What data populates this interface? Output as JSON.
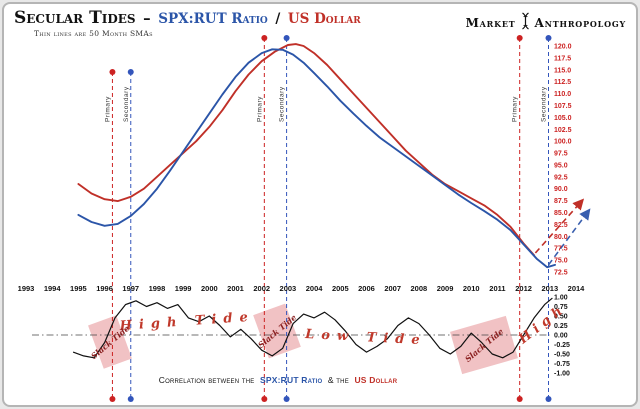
{
  "header": {
    "title_main": "Secular Tides",
    "title_sep": "–",
    "title_blue": "SPX:RUT Ratio",
    "title_slash": "/",
    "title_red": "US Dollar",
    "subtitle": "Thin lines are 50 Month SMAs",
    "logo_left": "Market",
    "logo_right": "Anthropology"
  },
  "footer": {
    "caption_prefix": "Correlation between the",
    "caption_blue": "SPX:RUT Ratio",
    "caption_mid": "& the",
    "caption_red": "US Dollar"
  },
  "colors": {
    "spx_rut_blue": "#2b55a8",
    "us_dollar_red": "#c03028",
    "axis_tick_red": "#cc2222",
    "correlation_black": "#111111",
    "slack_box_pink": "rgba(225,120,125,0.45)",
    "annotation_red": "#c0392b"
  },
  "chart_data": {
    "type": "line",
    "title": "Secular Tides – SPX:RUT Ratio / US Dollar",
    "subtitle": "Thin lines are 50 Month SMAs",
    "x_years": [
      1993,
      1994,
      1995,
      1996,
      1997,
      1998,
      1999,
      2000,
      2001,
      2002,
      2003,
      2004,
      2005,
      2006,
      2007,
      2008,
      2009,
      2010,
      2011,
      2012,
      2013,
      2014
    ],
    "y_axis": {
      "min": 72.5,
      "max": 120.0,
      "step": 2.5,
      "ticks": [
        "120.0",
        "117.5",
        "115.0",
        "112.5",
        "110.0",
        "107.5",
        "105.0",
        "102.5",
        "100.0",
        "97.5",
        "95.0",
        "92.5",
        "90.0",
        "87.5",
        "85.0",
        "82.5",
        "80.0",
        "77.5",
        "75.0",
        "72.5"
      ]
    },
    "series": [
      {
        "name": "US Dollar (50-month SMA)",
        "color": "#c03028",
        "x": [
          1995,
          1995.5,
          1996,
          1996.5,
          1997,
          1997.5,
          1998,
          1998.5,
          1999,
          1999.5,
          2000,
          2000.5,
          2001,
          2001.5,
          2002,
          2002.5,
          2003,
          2003.3,
          2003.6,
          2004,
          2004.5,
          2005,
          2005.5,
          2006,
          2006.5,
          2007,
          2007.5,
          2008,
          2008.5,
          2009,
          2009.5,
          2010,
          2010.5,
          2011,
          2011.5,
          2012,
          2012.4
        ],
        "values": [
          91,
          89,
          87.8,
          87.4,
          88.3,
          90,
          92.5,
          95,
          97.5,
          100,
          103,
          106.5,
          110.5,
          114,
          116.8,
          118.8,
          120.2,
          120.4,
          120,
          118.5,
          116,
          113,
          110,
          107,
          104,
          101,
          98,
          95.5,
          93,
          91,
          89.5,
          88,
          86.5,
          84.5,
          82,
          78.5,
          76
        ]
      },
      {
        "name": "SPX:RUT Ratio (50-month SMA)",
        "color": "#2b55a8",
        "x": [
          1995,
          1995.5,
          1996,
          1996.5,
          1997,
          1997.5,
          1998,
          1998.5,
          1999,
          1999.5,
          2000,
          2000.5,
          2001,
          2001.5,
          2002,
          2002.4,
          2002.8,
          2003.2,
          2003.6,
          2004,
          2004.5,
          2005,
          2005.5,
          2006,
          2006.5,
          2007,
          2007.5,
          2008,
          2008.5,
          2009,
          2009.5,
          2010,
          2010.5,
          2011,
          2011.5,
          2012,
          2012.5,
          2012.9,
          2013.2
        ],
        "values": [
          84.5,
          83,
          82.2,
          82.6,
          84.3,
          86.8,
          90,
          93.8,
          97.8,
          101.8,
          105.8,
          109.8,
          113.5,
          116.5,
          118.5,
          119.3,
          119.2,
          118.2,
          116.5,
          114.3,
          111.5,
          108.5,
          105.8,
          103.2,
          100.8,
          98.8,
          96.8,
          94.8,
          92.8,
          90.8,
          88.8,
          87,
          85.3,
          83.5,
          81.3,
          78.3,
          75.3,
          73.5,
          74
        ]
      }
    ],
    "correlation": {
      "name": "Correlation SPX:RUT Ratio vs US Dollar",
      "ylim": [
        -1,
        1
      ],
      "ticks": [
        "1.00",
        "0.75",
        "0.50",
        "0.25",
        "0.00",
        "-0.25",
        "-0.50",
        "-0.75",
        "-1.00"
      ],
      "x": [
        1994.8,
        1995.2,
        1995.6,
        1996,
        1996.4,
        1996.8,
        1997.2,
        1997.6,
        1998,
        1998.4,
        1998.8,
        1999.2,
        1999.6,
        2000,
        2000.4,
        2000.8,
        2001.2,
        2001.6,
        2002,
        2002.4,
        2002.8,
        2003.2,
        2003.6,
        2004,
        2004.4,
        2004.8,
        2005.2,
        2005.6,
        2006,
        2006.4,
        2006.8,
        2007.2,
        2007.6,
        2008,
        2008.4,
        2008.8,
        2009.2,
        2009.6,
        2010,
        2010.4,
        2010.8,
        2011.2,
        2011.6,
        2012,
        2012.4,
        2012.8,
        2013.1
      ],
      "values": [
        -0.45,
        -0.55,
        -0.6,
        -0.2,
        0.45,
        0.8,
        0.9,
        0.75,
        0.85,
        0.7,
        0.8,
        0.45,
        0.35,
        0.5,
        0.25,
        -0.05,
        0.15,
        -0.1,
        -0.4,
        -0.55,
        -0.35,
        0.3,
        0.55,
        0.45,
        0.6,
        0.4,
        0.1,
        -0.25,
        -0.45,
        -0.3,
        -0.1,
        0.25,
        0.45,
        0.3,
        0.0,
        -0.35,
        -0.5,
        -0.3,
        0.05,
        -0.2,
        -0.5,
        -0.6,
        -0.45,
        0.0,
        0.45,
        0.8,
        0.97
      ]
    },
    "events": [
      {
        "label": "Primary",
        "year": 1996.3,
        "type": "primary"
      },
      {
        "label": "Secondary",
        "year": 1997.0,
        "type": "secondary"
      },
      {
        "label": "Primary",
        "year": 2002.1,
        "type": "primary"
      },
      {
        "label": "Secondary",
        "year": 2002.95,
        "type": "secondary"
      },
      {
        "label": "Primary",
        "year": 2011.85,
        "type": "primary"
      },
      {
        "label": "Secondary",
        "year": 2012.95,
        "type": "secondary"
      }
    ],
    "annotations": {
      "high_tide": "High Tide",
      "low_tide": "Low Tide",
      "high": "High",
      "slack_tide": "Slack Tide"
    },
    "projections": [
      {
        "name": "us-dollar-projection",
        "color": "#c03028",
        "from": {
          "x": 2012.45,
          "y": 76.5
        },
        "to": {
          "x": 2014.25,
          "y": 87.6
        }
      },
      {
        "name": "spx-rut-projection",
        "color": "#3a5fae",
        "from": {
          "x": 2012.95,
          "y": 74.0
        },
        "to": {
          "x": 2014.5,
          "y": 85.5
        }
      }
    ]
  }
}
